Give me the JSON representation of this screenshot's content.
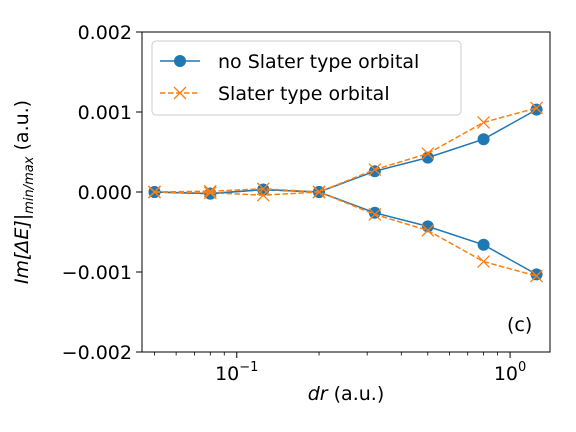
{
  "chart_data": {
    "type": "line",
    "xscale": "log",
    "x": [
      0.05,
      0.08,
      0.125,
      0.2,
      0.32,
      0.5,
      0.8,
      1.25
    ],
    "xlim": [
      0.045,
      1.4
    ],
    "ylim": [
      -0.002,
      0.002
    ],
    "xlabel_main": "dr",
    "xlabel_unit": " (a.u.)",
    "ylabel_main": "Im[ΔE]",
    "ylabel_sub": "min/max",
    "ylabel_unit": " (a.u.)",
    "yticks": [
      {
        "value": 0.002,
        "label": "0.002"
      },
      {
        "value": 0.001,
        "label": "0.001"
      },
      {
        "value": 0.0,
        "label": "0.000"
      },
      {
        "value": -0.001,
        "label": "−0.001"
      },
      {
        "value": -0.002,
        "label": "−0.002"
      }
    ],
    "xticks": [
      {
        "value": 0.1,
        "base": "10",
        "exp": "−1"
      },
      {
        "value": 1,
        "base": "10",
        "exp": "0"
      }
    ],
    "grid": false,
    "legend_position": "upper-left",
    "annotation": "(c)",
    "series": [
      {
        "name": "no Slater type orbital",
        "color": "#1f77b4",
        "linestyle": "solid",
        "marker": "circle",
        "upper": [
          0.0,
          -2e-05,
          3e-05,
          0.0,
          0.00026,
          0.00043,
          0.00066,
          0.00103
        ],
        "lower": [
          0.0,
          -2e-05,
          3e-05,
          0.0,
          -0.00026,
          -0.00043,
          -0.00066,
          -0.00103
        ]
      },
      {
        "name": "Slater type orbital",
        "color": "#ff7f0e",
        "linestyle": "dashed",
        "marker": "x",
        "upper": [
          0.0,
          1e-05,
          4e-05,
          0.0,
          0.00028,
          0.00048,
          0.00087,
          0.00105
        ],
        "lower": [
          0.0,
          -1e-05,
          -4e-05,
          0.0,
          -0.00028,
          -0.00048,
          -0.00087,
          -0.00105
        ]
      }
    ]
  }
}
